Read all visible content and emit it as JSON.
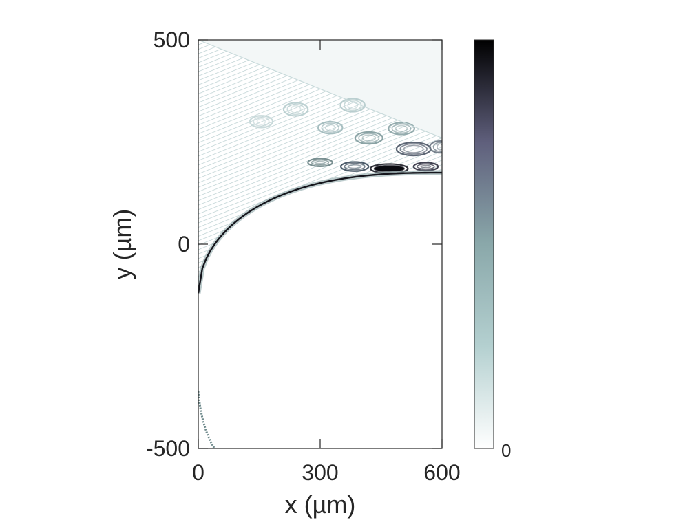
{
  "chart_data": {
    "type": "heatmap",
    "title": "",
    "xlabel": "x  (µm)",
    "ylabel": "y  (µm)",
    "xlim": [
      0,
      600
    ],
    "ylim": [
      -500,
      500
    ],
    "x_ticks": [
      0,
      300,
      600
    ],
    "y_ticks": [
      -500,
      0,
      500
    ],
    "x_tick_labels": [
      "0",
      "300",
      "600"
    ],
    "y_tick_labels": [
      "-500",
      "0",
      "500"
    ],
    "grid": false,
    "colormap": "bone (reversed)",
    "colorbar": {
      "position": "right",
      "tick_labels": [
        "0"
      ],
      "colors": [
        "#ffffff",
        "#b4d0d0",
        "#8aa8aa",
        "#5f5f7c",
        "#000000"
      ]
    },
    "features": {
      "dark_boundary_arc": "circular edge of the bright region, from about (0, -120) through (180, 140) to (600, 175)",
      "diagonal_edge": "straight edge from about (0, 500) to (600, 260)",
      "fringe_band": "elliptical interference fringes between the diagonal edge and the arc",
      "peak_location": [
        470,
        185
      ]
    }
  }
}
